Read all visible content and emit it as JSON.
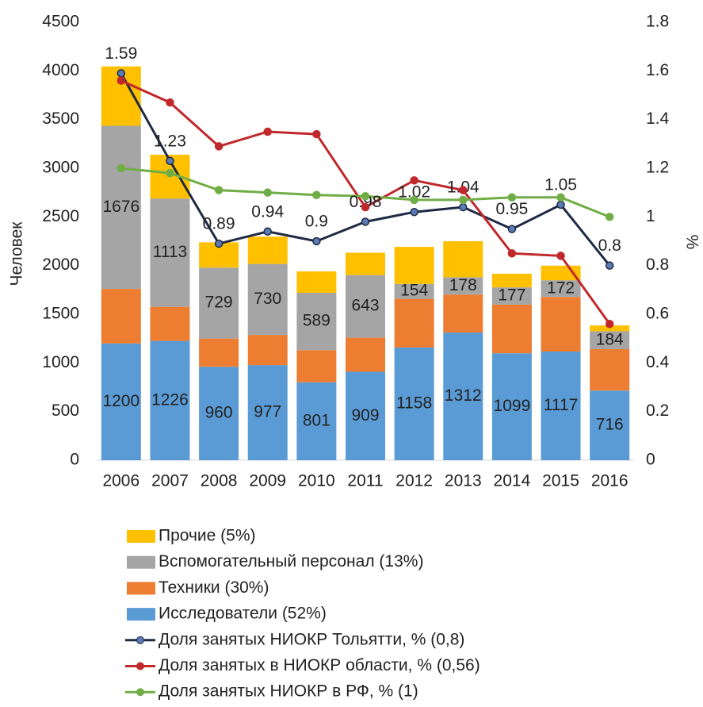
{
  "chart_data": {
    "type": "bar_line",
    "y_label": "Человек",
    "y2_label": "%",
    "categories": [
      "2006",
      "2007",
      "2008",
      "2009",
      "2010",
      "2011",
      "2012",
      "2013",
      "2014",
      "2015",
      "2016"
    ],
    "ylim": [
      0,
      4500
    ],
    "yticks": [
      0,
      500,
      1000,
      1500,
      2000,
      2500,
      3000,
      3500,
      4000,
      4500
    ],
    "y2lim": [
      0,
      1.8
    ],
    "y2ticks": [
      0,
      0.2,
      0.4,
      0.6,
      0.8,
      1,
      1.2,
      1.4,
      1.6,
      1.8
    ],
    "bar_series": [
      {
        "name": "Исследователи (52%)",
        "color": "#5b9bd5",
        "show_labels": true,
        "values": [
          1200,
          1226,
          960,
          977,
          801,
          909,
          1158,
          1312,
          1099,
          1117,
          716
        ]
      },
      {
        "name": "Техники (30%)",
        "color": "#ed7d31",
        "show_labels": false,
        "values": [
          560,
          350,
          290,
          310,
          330,
          350,
          500,
          390,
          500,
          560,
          425
        ]
      },
      {
        "name": "Вспомогательный персонал (13%)",
        "color": "#a5a5a5",
        "show_labels": true,
        "values": [
          1676,
          1113,
          729,
          730,
          589,
          643,
          154,
          178,
          177,
          172,
          184
        ]
      },
      {
        "name": "Прочие (5%)",
        "color": "#ffc000",
        "show_labels": false,
        "values": [
          610,
          450,
          260,
          280,
          220,
          230,
          380,
          370,
          140,
          150,
          60
        ]
      }
    ],
    "line_series": [
      {
        "name": "Доля занятых НИОКР Тольятти, % (0,8)",
        "color": "#1f2a44",
        "axis": "y2",
        "show_labels": true,
        "values": [
          1.59,
          1.23,
          0.89,
          0.94,
          0.9,
          0.98,
          1.02,
          1.04,
          0.95,
          1.05,
          0.8
        ]
      },
      {
        "name": "Доля занятых в НИОКР области,  % (0,56)",
        "color": "#c0282b",
        "axis": "y2",
        "show_labels": false,
        "values": [
          1.56,
          1.47,
          1.29,
          1.35,
          1.34,
          1.04,
          1.15,
          1.11,
          0.85,
          0.84,
          0.56
        ]
      },
      {
        "name": "Доля занятых НИОКР в РФ, % (1)",
        "color": "#70ad47",
        "axis": "y2",
        "show_labels": false,
        "values": [
          1.2,
          1.18,
          1.11,
          1.1,
          1.09,
          1.085,
          1.07,
          1.07,
          1.08,
          1.08,
          1.0
        ]
      }
    ]
  }
}
